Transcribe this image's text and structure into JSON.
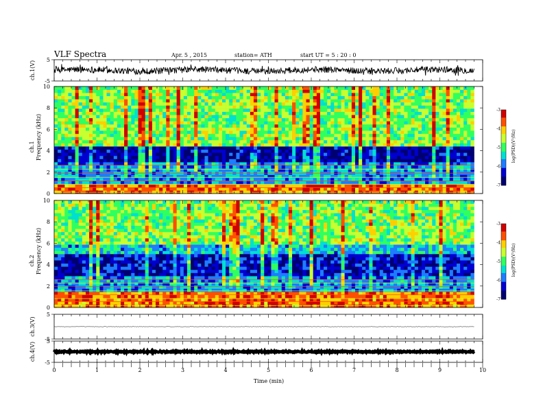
{
  "header": {
    "title": "VLF  Spectra",
    "date": "Apr. 5  , 2015",
    "station": "station= ATH",
    "start": "start  UT  =   5  : 20 : 0"
  },
  "colors": {
    "spectrogram_scale": [
      "#000070",
      "#0000d0",
      "#1e7cff",
      "#00e0d0",
      "#30ff60",
      "#c8ff30",
      "#ffd000",
      "#ff5000",
      "#d00000",
      "#ffffff"
    ]
  },
  "chart_data": [
    {
      "type": "line",
      "name": "ch.1",
      "ylabel": "ch.1(V)",
      "ylim": [
        -5,
        5
      ],
      "yticks": [
        5,
        -5
      ],
      "x_range_min": [
        0,
        9.8
      ],
      "baseline_v": 0,
      "noise_amplitude_v": 1.5
    },
    {
      "type": "heatmap",
      "name": "ch.1 spectrogram",
      "ylabel_top": "ch.1",
      "ylabel": "Frequency  (kHz)",
      "ylim": [
        0,
        10
      ],
      "yticks": [
        0,
        2,
        4,
        6,
        8,
        10
      ],
      "x_range_min": [
        0,
        9.8
      ],
      "colorbar": {
        "label": "log(PSD)(V²/Hz)",
        "range": [
          -7,
          -3
        ],
        "ticks": [
          "-3",
          "-4",
          "-5",
          "-6",
          "-7"
        ]
      },
      "freq_bands_khz": [
        {
          "from": 0,
          "to": 0.8,
          "level": -3.8
        },
        {
          "from": 0.8,
          "to": 2.9,
          "level": -5.8
        },
        {
          "from": 2.9,
          "to": 4.5,
          "level": -6.6
        },
        {
          "from": 4.5,
          "to": 10,
          "level": -4.8
        }
      ]
    },
    {
      "type": "heatmap",
      "name": "ch.2 spectrogram",
      "ylabel_top": "ch.2",
      "ylabel": "Frequency  (kHz)",
      "ylim": [
        0,
        10
      ],
      "yticks": [
        0,
        2,
        4,
        6,
        8,
        10
      ],
      "x_range_min": [
        0,
        9.8
      ],
      "colorbar": {
        "label": "log(PSD)(V²/Hz)",
        "range": [
          -7,
          -3
        ],
        "ticks": [
          "-3",
          "-4",
          "-5",
          "-6",
          "-7"
        ]
      },
      "freq_bands_khz": [
        {
          "from": 0,
          "to": 1.5,
          "level": -3.8
        },
        {
          "from": 1.5,
          "to": 3,
          "level": -5.8
        },
        {
          "from": 3,
          "to": 5,
          "level": -6.4
        },
        {
          "from": 5,
          "to": 6,
          "level": -5.6
        },
        {
          "from": 6,
          "to": 10,
          "level": -4.8
        }
      ]
    },
    {
      "type": "line",
      "name": "ch.3",
      "ylabel": "ch.3(V)",
      "ylim": [
        -5,
        5
      ],
      "yticks": [
        5,
        -5
      ],
      "x_range_min": [
        0,
        9.8
      ],
      "baseline_v": 0,
      "noise_amplitude_v": 0.1
    },
    {
      "type": "line",
      "name": "ch.4",
      "ylabel": "ch.4(V)",
      "ylim": [
        -5,
        5
      ],
      "yticks": [
        5,
        -5
      ],
      "x_range_min": [
        0,
        9.8
      ],
      "baseline_v": 0,
      "noise_amplitude_v": 0.3
    }
  ],
  "x_axis": {
    "xlabel": "Time  (min)",
    "xlim": [
      0,
      10
    ],
    "ticks": [
      "0",
      "1",
      "2",
      "3",
      "4",
      "5",
      "6",
      "7",
      "8",
      "9",
      "10"
    ]
  }
}
